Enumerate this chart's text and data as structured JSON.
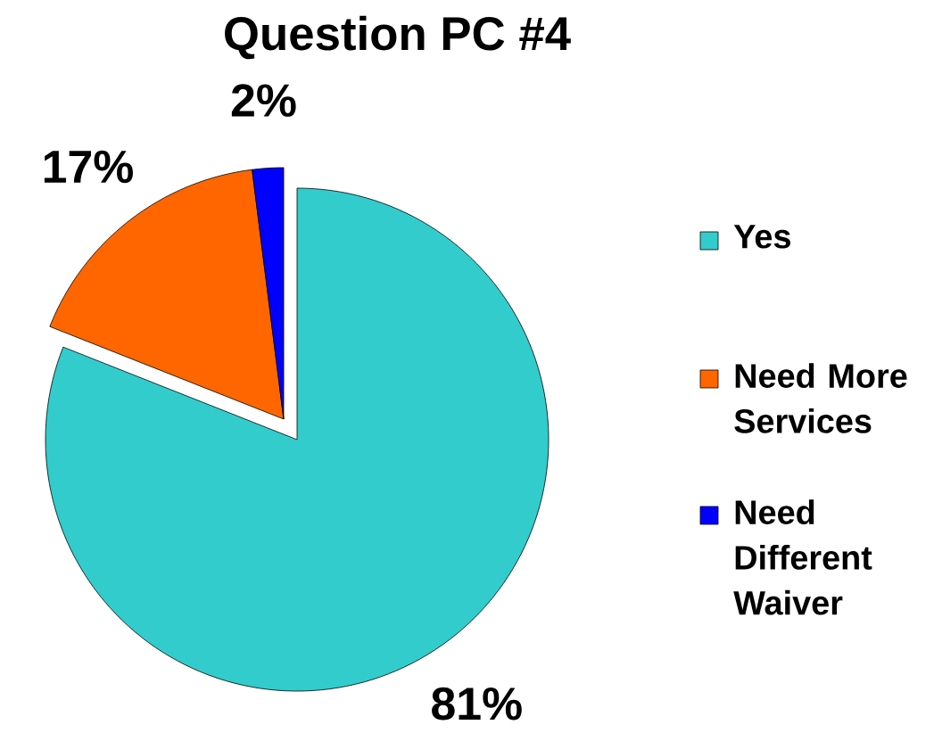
{
  "chart_data": {
    "type": "pie",
    "title": "Question PC #4",
    "categories": [
      "Yes",
      "Need More Services",
      "Need Different Waiver"
    ],
    "values": [
      81,
      17,
      2
    ],
    "colors": [
      "#33cccc",
      "#ff6600",
      "#0000ff"
    ],
    "value_labels": [
      "81%",
      "17%",
      "2%"
    ],
    "legend": "right"
  }
}
